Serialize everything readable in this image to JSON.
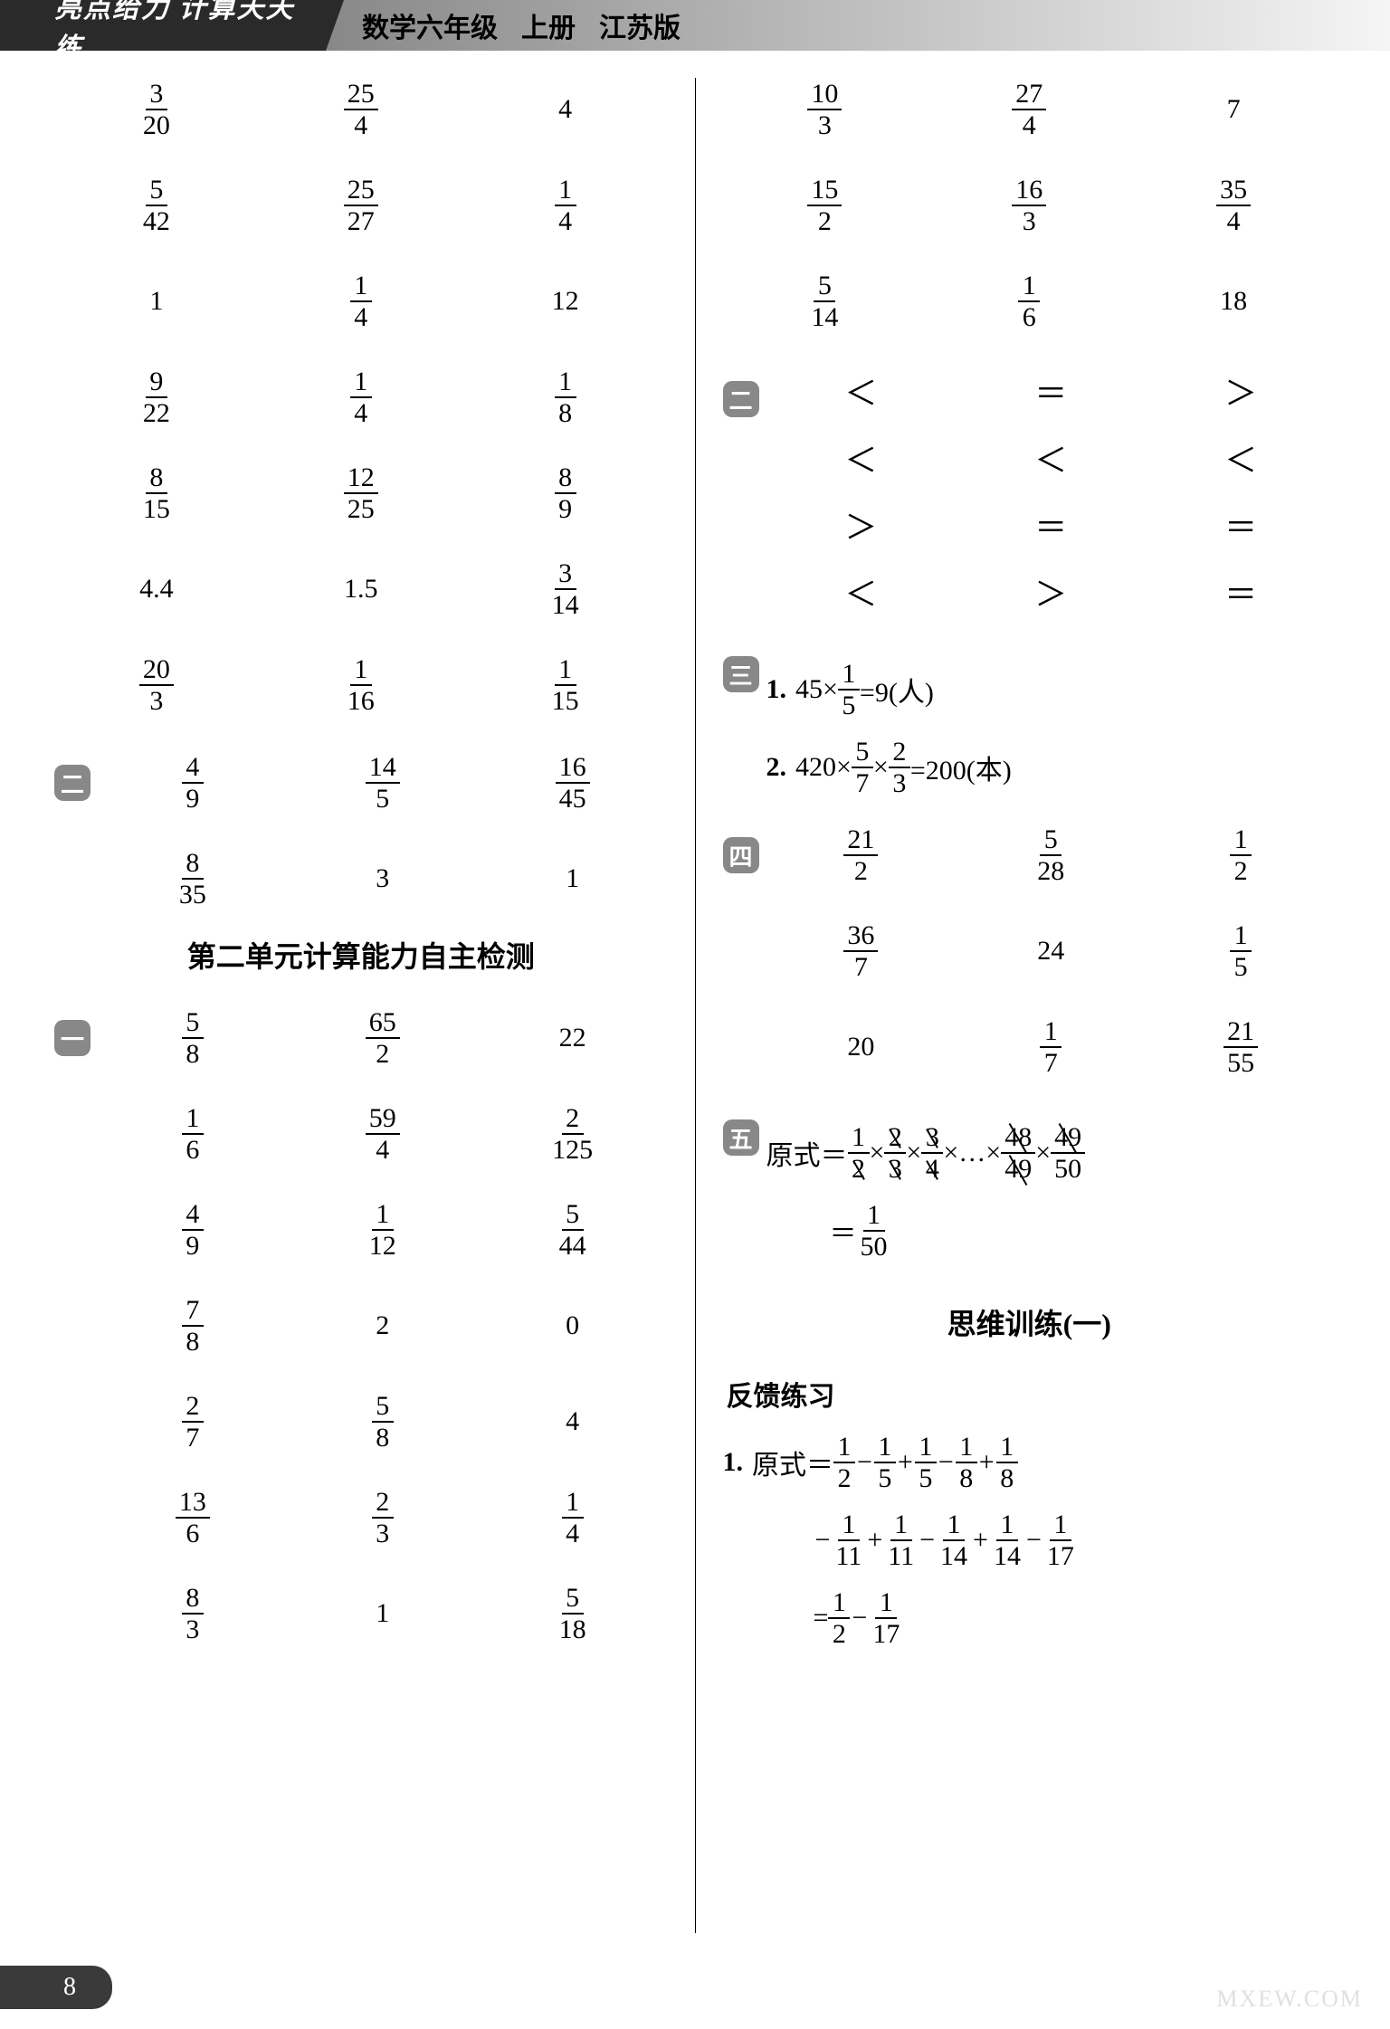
{
  "header": {
    "title_main": "亮点给力 计算天天练",
    "subject": "数学六年级",
    "volume": "上册",
    "edition": "江苏版"
  },
  "page_number": "8",
  "watermark": "MXEW.COM",
  "left": {
    "grid_a": [
      [
        "3/20",
        "25/4",
        "4"
      ],
      [
        "5/42",
        "25/27",
        "1/4"
      ],
      [
        "1",
        "1/4",
        "12"
      ],
      [
        "9/22",
        "1/4",
        "1/8"
      ],
      [
        "8/15",
        "12/25",
        "8/9"
      ],
      [
        "4.4",
        "1.5",
        "3/14"
      ],
      [
        "20/3",
        "1/16",
        "1/15"
      ]
    ],
    "badge_b": "二",
    "grid_b": [
      [
        "4/9",
        "14/5",
        "16/45"
      ],
      [
        "8/35",
        "3",
        "1"
      ]
    ],
    "section_title": "第二单元计算能力自主检测",
    "badge_c": "一",
    "grid_c": [
      [
        "5/8",
        "65/2",
        "22"
      ],
      [
        "1/6",
        "59/4",
        "2/125"
      ],
      [
        "4/9",
        "1/12",
        "5/44"
      ],
      [
        "7/8",
        "2",
        "0"
      ],
      [
        "2/7",
        "5/8",
        "4"
      ],
      [
        "13/6",
        "2/3",
        "1/4"
      ],
      [
        "8/3",
        "1",
        "5/18"
      ]
    ]
  },
  "right": {
    "grid_a": [
      [
        "10/3",
        "27/4",
        "7"
      ],
      [
        "15/2",
        "16/3",
        "35/4"
      ],
      [
        "5/14",
        "1/6",
        "18"
      ]
    ],
    "badge_b": "二",
    "comparisons": [
      [
        "＜",
        "＝",
        "＞"
      ],
      [
        "＜",
        "＜",
        "＜"
      ],
      [
        "＞",
        "＝",
        "＝"
      ],
      [
        "＜",
        "＞",
        "＝"
      ]
    ],
    "badge_c": "三",
    "problems_c": [
      {
        "num": "1.",
        "prefix": "45×",
        "frac": "1/5",
        "suffix": "=9(人)"
      },
      {
        "num": "2.",
        "prefix": "420×",
        "frac": "5/7",
        "mid": "×",
        "frac2": "2/3",
        "suffix": "=200(本)"
      }
    ],
    "badge_d": "四",
    "grid_d": [
      [
        "21/2",
        "5/28",
        "1/2"
      ],
      [
        "36/7",
        "24",
        "1/5"
      ],
      [
        "20",
        "1/7",
        "21/55"
      ]
    ],
    "badge_e": "五",
    "eq_e": {
      "label": "原式",
      "terms": [
        "1/2",
        "2/3",
        "3/4",
        "48/49",
        "49/50"
      ],
      "result": "1/50"
    },
    "section_title": "思维训练(一)",
    "subheading": "反馈练习",
    "problem_1": {
      "num": "1.",
      "label": "原式",
      "line1": [
        "1/2",
        "−",
        "1/5",
        "+",
        "1/5",
        "−",
        "1/8",
        "+",
        "1/8"
      ],
      "line2": [
        "−",
        "1/11",
        "+",
        "1/11",
        "−",
        "1/14",
        "+",
        "1/14",
        "−",
        "1/17"
      ],
      "line3_pre": "=",
      "line3": [
        "1/2",
        "−",
        "1/17"
      ]
    }
  }
}
